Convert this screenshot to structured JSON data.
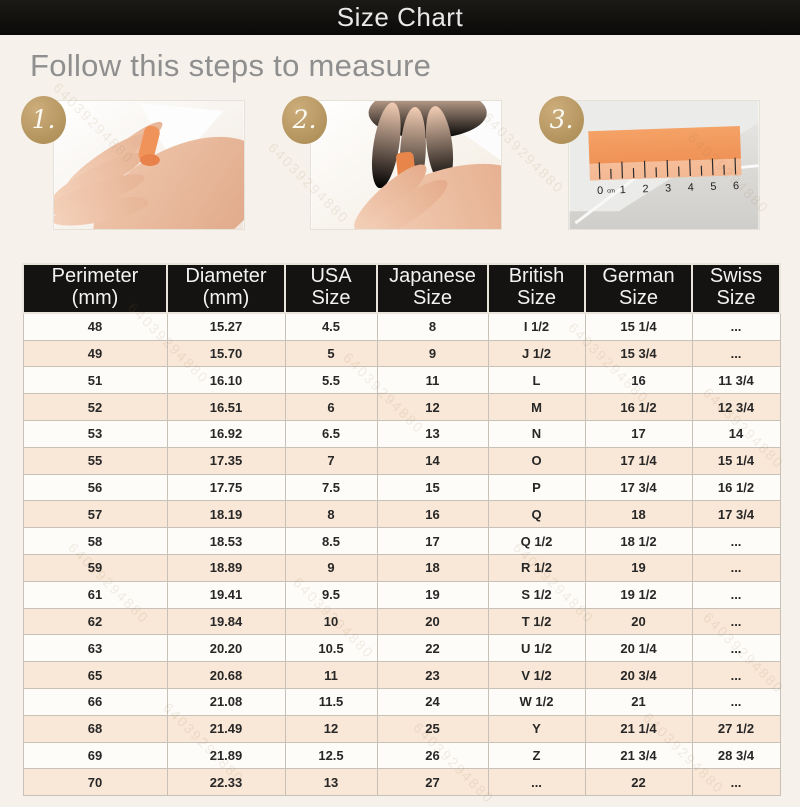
{
  "banner": {
    "title": "Size Chart"
  },
  "heading": "Follow this steps to measure",
  "steps": [
    {
      "number": "1."
    },
    {
      "number": "2."
    },
    {
      "number": "3."
    }
  ],
  "ruler_numbers": [
    "0",
    "1",
    "2",
    "3",
    "4",
    "5",
    "6"
  ],
  "ruler_unit": "cm",
  "watermark": "64039294880",
  "colors": {
    "banner_bg": "#121110",
    "page_bg": "#f6f1ea",
    "badge_gold": "#c0a16e",
    "row_alt_peach": "#f9e7d7",
    "row_white": "#fdfcf9",
    "header_bg": "#141311",
    "header_text": "#f2f2f2",
    "orange_strip": "#ef9257"
  },
  "table": {
    "columns": [
      {
        "line1": "Perimeter",
        "line2": "(mm)"
      },
      {
        "line1": "Diameter",
        "line2": "(mm)"
      },
      {
        "line1": "USA",
        "line2": "Size"
      },
      {
        "line1": "Japanese",
        "line2": "Size"
      },
      {
        "line1": "British",
        "line2": "Size"
      },
      {
        "line1": "German",
        "line2": "Size"
      },
      {
        "line1": "Swiss",
        "line2": "Size"
      }
    ],
    "rows": [
      [
        "48",
        "15.27",
        "4.5",
        "8",
        "I 1/2",
        "15 1/4",
        "..."
      ],
      [
        "49",
        "15.70",
        "5",
        "9",
        "J 1/2",
        "15 3/4",
        "..."
      ],
      [
        "51",
        "16.10",
        "5.5",
        "11",
        "L",
        "16",
        "11 3/4"
      ],
      [
        "52",
        "16.51",
        "6",
        "12",
        "M",
        "16 1/2",
        "12 3/4"
      ],
      [
        "53",
        "16.92",
        "6.5",
        "13",
        "N",
        "17",
        "14"
      ],
      [
        "55",
        "17.35",
        "7",
        "14",
        "O",
        "17 1/4",
        "15 1/4"
      ],
      [
        "56",
        "17.75",
        "7.5",
        "15",
        "P",
        "17 3/4",
        "16 1/2"
      ],
      [
        "57",
        "18.19",
        "8",
        "16",
        "Q",
        "18",
        "17 3/4"
      ],
      [
        "58",
        "18.53",
        "8.5",
        "17",
        "Q 1/2",
        "18 1/2",
        "..."
      ],
      [
        "59",
        "18.89",
        "9",
        "18",
        "R 1/2",
        "19",
        "..."
      ],
      [
        "61",
        "19.41",
        "9.5",
        "19",
        "S 1/2",
        "19 1/2",
        "..."
      ],
      [
        "62",
        "19.84",
        "10",
        "20",
        "T 1/2",
        "20",
        "..."
      ],
      [
        "63",
        "20.20",
        "10.5",
        "22",
        "U 1/2",
        "20 1/4",
        "..."
      ],
      [
        "65",
        "20.68",
        "11",
        "23",
        "V 1/2",
        "20 3/4",
        "..."
      ],
      [
        "66",
        "21.08",
        "11.5",
        "24",
        "W 1/2",
        "21",
        "..."
      ],
      [
        "68",
        "21.49",
        "12",
        "25",
        "Y",
        "21 1/4",
        "27 1/2"
      ],
      [
        "69",
        "21.89",
        "12.5",
        "26",
        "Z",
        "21 3/4",
        "28 3/4"
      ],
      [
        "70",
        "22.33",
        "13",
        "27",
        "...",
        "22",
        "..."
      ]
    ]
  }
}
